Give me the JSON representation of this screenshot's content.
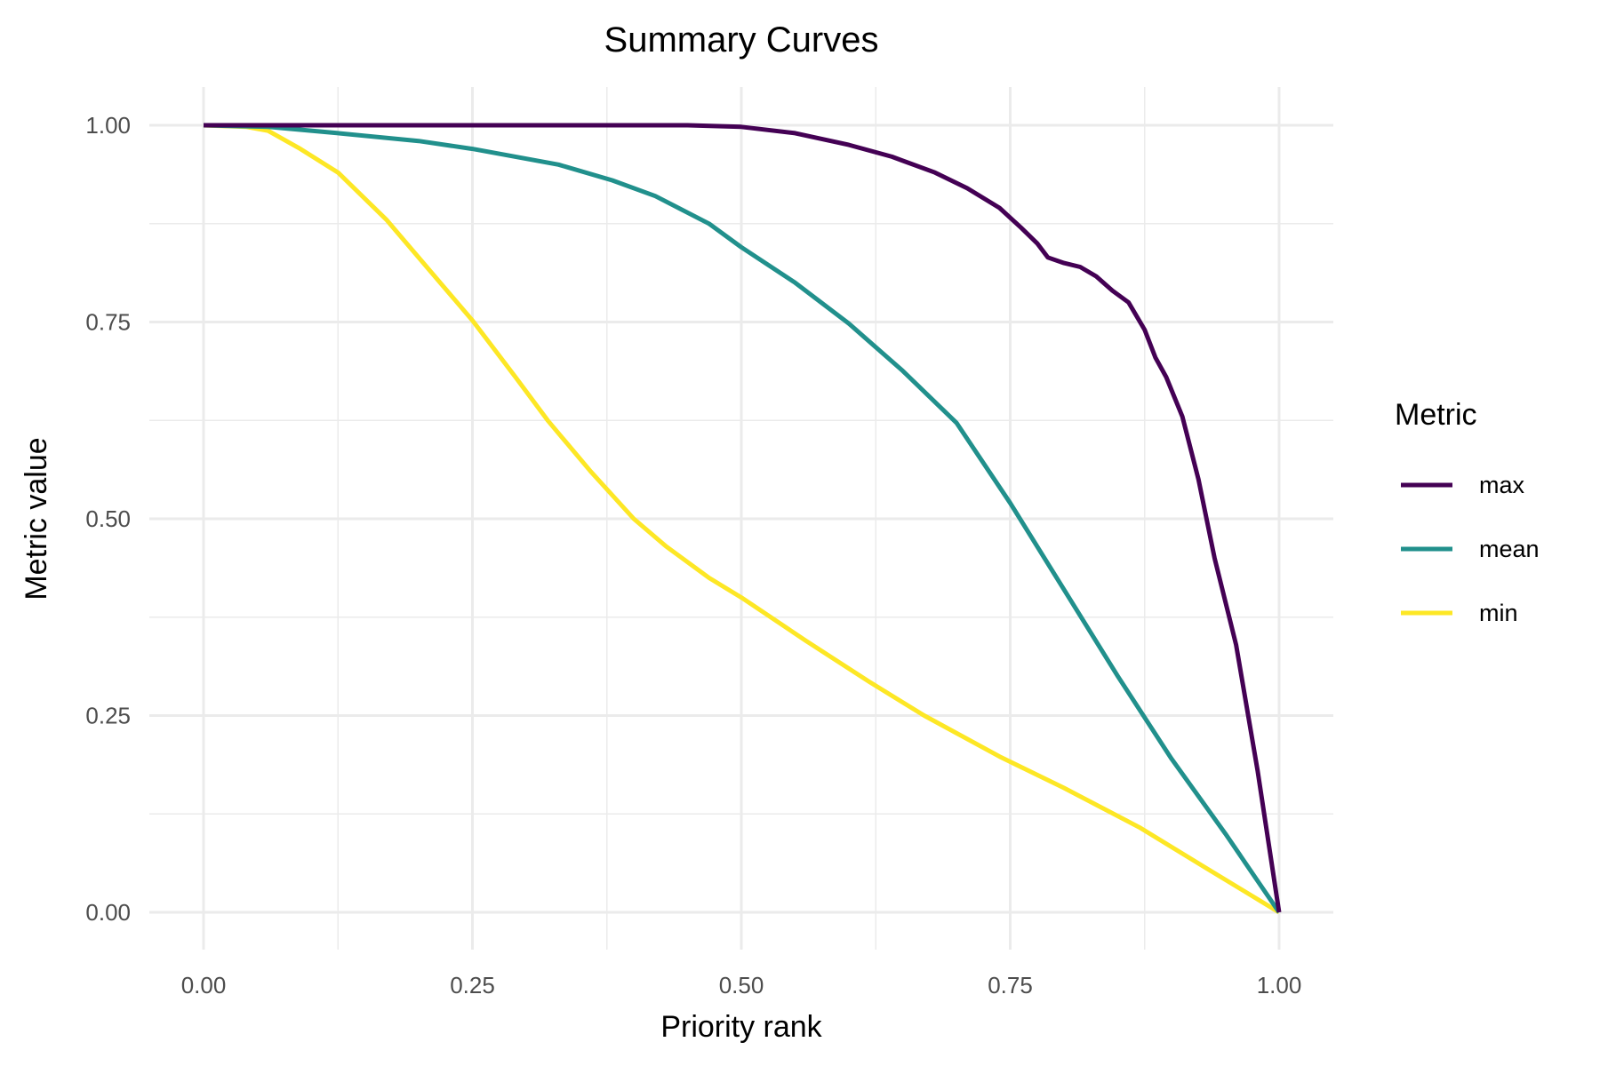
{
  "chart_data": {
    "type": "line",
    "title": "Summary Curves",
    "xlabel": "Priority rank",
    "ylabel": "Metric value",
    "xlim": [
      0,
      1
    ],
    "ylim": [
      0,
      1
    ],
    "x_ticks": [
      "0.00",
      "0.25",
      "0.50",
      "0.75",
      "1.00"
    ],
    "y_ticks": [
      "0.00",
      "0.25",
      "0.50",
      "0.75",
      "1.00"
    ],
    "grid": true,
    "legend": {
      "title": "Metric",
      "position": "right"
    },
    "series": [
      {
        "name": "max",
        "color": "#440154",
        "points": [
          [
            0,
            1
          ],
          [
            0.3,
            1
          ],
          [
            0.45,
            1
          ],
          [
            0.5,
            0.998
          ],
          [
            0.55,
            0.99
          ],
          [
            0.6,
            0.975
          ],
          [
            0.64,
            0.96
          ],
          [
            0.68,
            0.94
          ],
          [
            0.71,
            0.92
          ],
          [
            0.74,
            0.895
          ],
          [
            0.76,
            0.87
          ],
          [
            0.775,
            0.85
          ],
          [
            0.785,
            0.832
          ],
          [
            0.8,
            0.825
          ],
          [
            0.815,
            0.82
          ],
          [
            0.83,
            0.808
          ],
          [
            0.845,
            0.79
          ],
          [
            0.86,
            0.775
          ],
          [
            0.875,
            0.74
          ],
          [
            0.885,
            0.705
          ],
          [
            0.895,
            0.68
          ],
          [
            0.91,
            0.63
          ],
          [
            0.925,
            0.55
          ],
          [
            0.94,
            0.45
          ],
          [
            0.96,
            0.34
          ],
          [
            0.98,
            0.18
          ],
          [
            1,
            0
          ]
        ]
      },
      {
        "name": "mean",
        "color": "#21908C",
        "points": [
          [
            0,
            1
          ],
          [
            0.06,
            0.998
          ],
          [
            0.125,
            0.99
          ],
          [
            0.2,
            0.98
          ],
          [
            0.25,
            0.97
          ],
          [
            0.33,
            0.95
          ],
          [
            0.38,
            0.93
          ],
          [
            0.42,
            0.91
          ],
          [
            0.47,
            0.875
          ],
          [
            0.5,
            0.845
          ],
          [
            0.55,
            0.8
          ],
          [
            0.6,
            0.748
          ],
          [
            0.65,
            0.688
          ],
          [
            0.7,
            0.622
          ],
          [
            0.75,
            0.52
          ],
          [
            0.8,
            0.41
          ],
          [
            0.85,
            0.3
          ],
          [
            0.9,
            0.195
          ],
          [
            0.95,
            0.1
          ],
          [
            0.98,
            0.04
          ],
          [
            1,
            0
          ]
        ]
      },
      {
        "name": "min",
        "color": "#FDE725",
        "points": [
          [
            0,
            1
          ],
          [
            0.04,
            0.998
          ],
          [
            0.06,
            0.993
          ],
          [
            0.09,
            0.97
          ],
          [
            0.125,
            0.94
          ],
          [
            0.17,
            0.88
          ],
          [
            0.22,
            0.8
          ],
          [
            0.25,
            0.752
          ],
          [
            0.29,
            0.68
          ],
          [
            0.32,
            0.625
          ],
          [
            0.36,
            0.56
          ],
          [
            0.4,
            0.5
          ],
          [
            0.43,
            0.465
          ],
          [
            0.47,
            0.425
          ],
          [
            0.5,
            0.4
          ],
          [
            0.56,
            0.345
          ],
          [
            0.62,
            0.292
          ],
          [
            0.67,
            0.25
          ],
          [
            0.74,
            0.198
          ],
          [
            0.8,
            0.158
          ],
          [
            0.87,
            0.108
          ],
          [
            0.93,
            0.058
          ],
          [
            1,
            0
          ]
        ]
      }
    ]
  }
}
